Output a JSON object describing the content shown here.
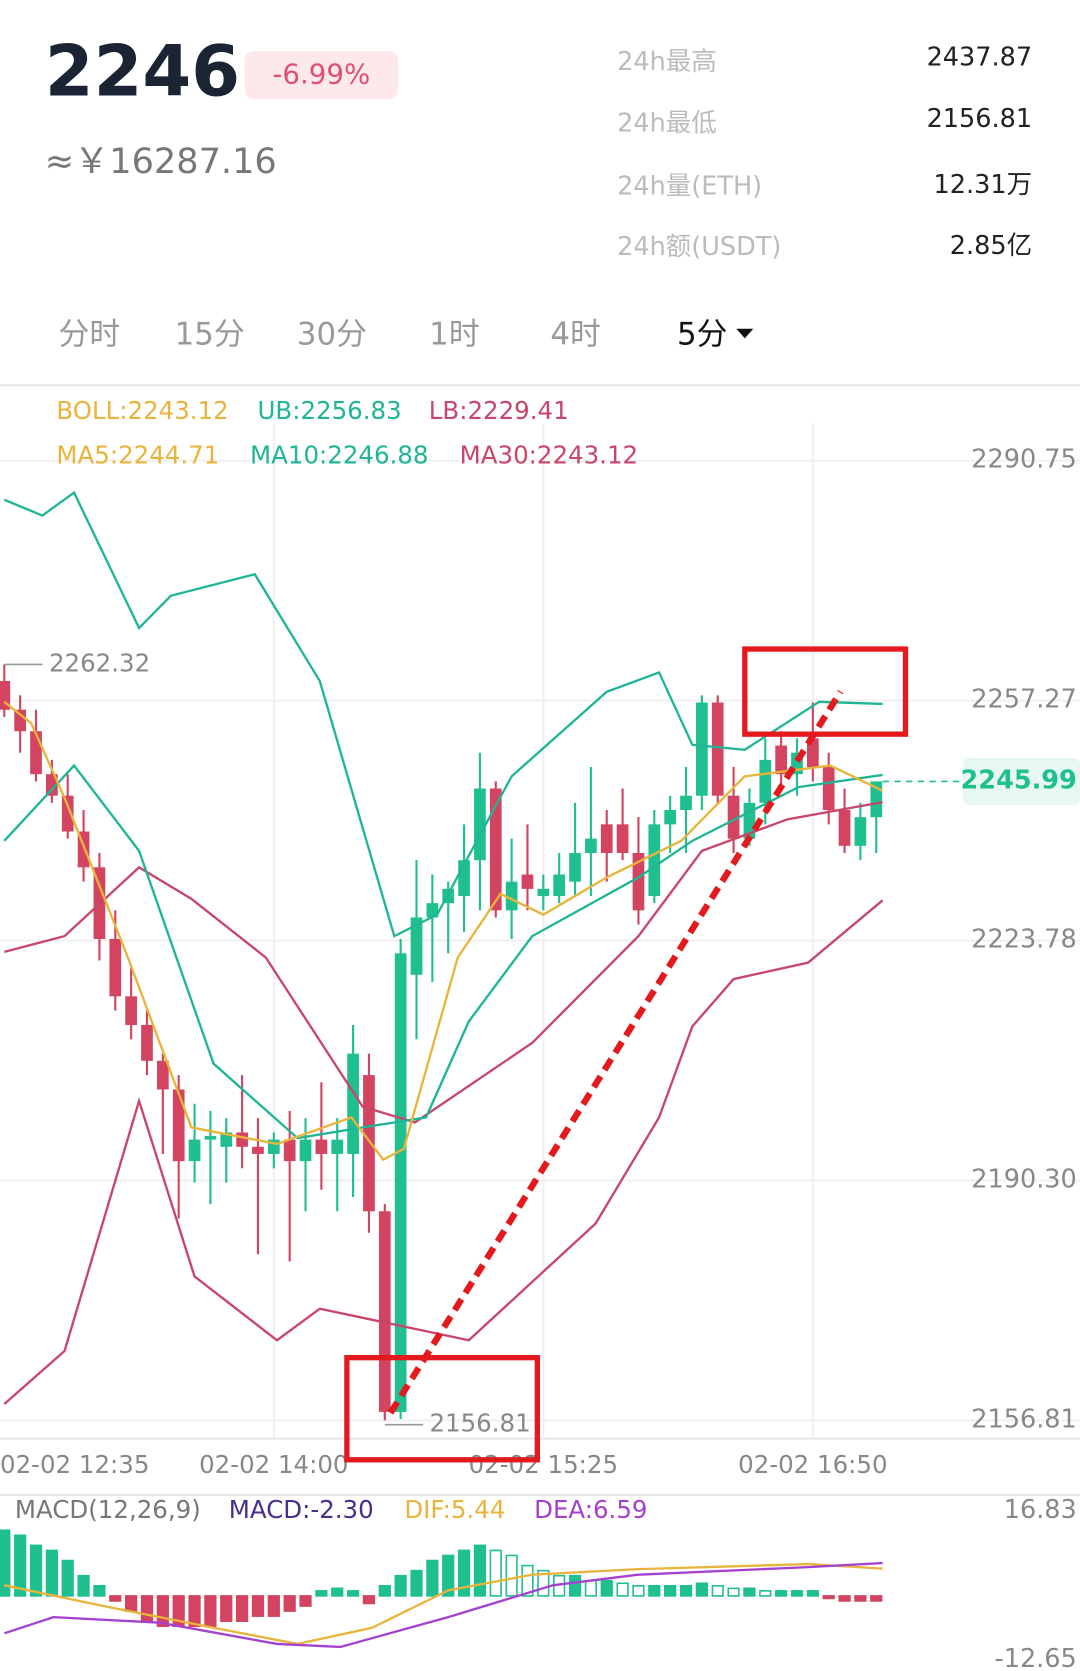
{
  "header": {
    "price": "2246",
    "change": "-6.99%",
    "cny": "≈￥16287.16",
    "stats": [
      {
        "label": "24h最高",
        "value": "2437.87"
      },
      {
        "label": "24h最低",
        "value": "2156.81"
      },
      {
        "label": "24h量(ETH)",
        "value": "12.31万"
      },
      {
        "label": "24h额(USDT)",
        "value": "2.85亿"
      }
    ]
  },
  "tabs": [
    "分时",
    "15分",
    "30分",
    "1时",
    "4时",
    "5分"
  ],
  "chart_data": [
    {
      "type": "candlestick",
      "indicators": [
        {
          "text": "BOLL:2243.12",
          "color": "#e9b43c"
        },
        {
          "text": "UB:2256.83",
          "color": "#1fb596"
        },
        {
          "text": "LB:2229.41",
          "color": "#c8466a"
        },
        {
          "text": "MA5:2244.71",
          "color": "#e9b43c"
        },
        {
          "text": "MA10:2246.88",
          "color": "#1fb596"
        },
        {
          "text": "MA30:2243.12",
          "color": "#c8466a"
        }
      ],
      "categories": [
        "02-02 12:35",
        null,
        null,
        null,
        null,
        null,
        null,
        null,
        null,
        null,
        null,
        null,
        null,
        null,
        null,
        null,
        null,
        "02-02 14:00",
        null,
        null,
        null,
        null,
        null,
        null,
        null,
        null,
        null,
        null,
        null,
        null,
        null,
        null,
        null,
        null,
        "02-02 15:25",
        null,
        null,
        null,
        null,
        null,
        null,
        null,
        null,
        null,
        null,
        null,
        null,
        null,
        null,
        null,
        null,
        "02-02 16:50",
        null,
        null,
        null,
        null
      ],
      "xlim": [
        -0.27,
        67.85
      ],
      "ylim": [
        2154.29,
        2295.95
      ],
      "yticks": [
        2290.75,
        2257.27,
        2223.78,
        {
          "value": 2190.3,
          "label": "2190.30"
        },
        2156.81
      ],
      "up_color": "#1fbf8f",
      "down_color": "#d2445f",
      "candles": [
        {
          "open": 2260,
          "high": 2262.32,
          "low": 2255,
          "close": 2256
        },
        {
          "open": 2256,
          "high": 2258,
          "low": 2250,
          "close": 2253
        },
        {
          "open": 2253,
          "high": 2256,
          "low": 2246,
          "close": 2247
        },
        {
          "open": 2247,
          "high": 2249,
          "low": 2243,
          "close": 2244
        },
        {
          "open": 2244,
          "high": 2247,
          "low": 2238,
          "close": 2239
        },
        {
          "open": 2239,
          "high": 2242,
          "low": 2232,
          "close": 2234
        },
        {
          "open": 2234,
          "high": 2236,
          "low": 2221,
          "close": 2224
        },
        {
          "open": 2224,
          "high": 2228,
          "low": 2214,
          "close": 2216
        },
        {
          "open": 2216,
          "high": 2220,
          "low": 2210,
          "close": 2212
        },
        {
          "open": 2212,
          "high": 2214,
          "low": 2205,
          "close": 2207
        },
        {
          "open": 2207,
          "high": 2208,
          "low": 2194,
          "close": 2203
        },
        {
          "open": 2203,
          "high": 2205,
          "low": 2185,
          "close": 2193
        },
        {
          "open": 2193,
          "high": 2201,
          "low": 2190,
          "close": 2196
        },
        {
          "open": 2196,
          "high": 2200,
          "low": 2187,
          "close": 2196.5
        },
        {
          "open": 2195,
          "high": 2199,
          "low": 2190,
          "close": 2197
        },
        {
          "open": 2197,
          "high": 2205,
          "low": 2192,
          "close": 2195
        },
        {
          "open": 2195,
          "high": 2199,
          "low": 2180,
          "close": 2194
        },
        {
          "open": 2194,
          "high": 2197,
          "low": 2192,
          "close": 2196
        },
        {
          "open": 2196,
          "high": 2200,
          "low": 2179,
          "close": 2193
        },
        {
          "open": 2193,
          "high": 2199,
          "low": 2186,
          "close": 2196
        },
        {
          "open": 2196,
          "high": 2204,
          "low": 2189,
          "close": 2194
        },
        {
          "open": 2194,
          "high": 2199,
          "low": 2186,
          "close": 2196
        },
        {
          "open": 2194,
          "high": 2212,
          "low": 2188,
          "close": 2208
        },
        {
          "open": 2205,
          "high": 2208,
          "low": 2183,
          "close": 2186
        },
        {
          "open": 2186,
          "high": 2187,
          "low": 2156.81,
          "close": 2158
        },
        {
          "open": 2158,
          "high": 2224,
          "low": 2157,
          "close": 2222
        },
        {
          "open": 2219,
          "high": 2235,
          "low": 2210,
          "close": 2227
        },
        {
          "open": 2227,
          "high": 2233,
          "low": 2218,
          "close": 2229
        },
        {
          "open": 2229,
          "high": 2232,
          "low": 2222,
          "close": 2231
        },
        {
          "open": 2230,
          "high": 2240,
          "low": 2225,
          "close": 2235
        },
        {
          "open": 2235,
          "high": 2250,
          "low": 2228,
          "close": 2245
        },
        {
          "open": 2245,
          "high": 2246,
          "low": 2227,
          "close": 2228
        },
        {
          "open": 2228,
          "high": 2238,
          "low": 2224,
          "close": 2232
        },
        {
          "open": 2233,
          "high": 2240,
          "low": 2228,
          "close": 2231
        },
        {
          "open": 2230,
          "high": 2233,
          "low": 2228,
          "close": 2231
        },
        {
          "open": 2230,
          "high": 2236,
          "low": 2229,
          "close": 2233
        },
        {
          "open": 2232,
          "high": 2243,
          "low": 2230,
          "close": 2236
        },
        {
          "open": 2236,
          "high": 2248,
          "low": 2230,
          "close": 2238
        },
        {
          "open": 2240,
          "high": 2242,
          "low": 2232,
          "close": 2236
        },
        {
          "open": 2240,
          "high": 2245,
          "low": 2235,
          "close": 2236
        },
        {
          "open": 2236,
          "high": 2241,
          "low": 2226,
          "close": 2228
        },
        {
          "open": 2230,
          "high": 2242,
          "low": 2229,
          "close": 2240
        },
        {
          "open": 2240,
          "high": 2244,
          "low": 2236,
          "close": 2242
        },
        {
          "open": 2242,
          "high": 2248,
          "low": 2236,
          "close": 2244
        },
        {
          "open": 2244,
          "high": 2258,
          "low": 2242,
          "close": 2257
        },
        {
          "open": 2257,
          "high": 2258,
          "low": 2243,
          "close": 2244
        },
        {
          "open": 2244,
          "high": 2248,
          "low": 2236,
          "close": 2238
        },
        {
          "open": 2238,
          "high": 2245,
          "low": 2237,
          "close": 2243
        },
        {
          "open": 2243,
          "high": 2252,
          "low": 2240,
          "close": 2249
        },
        {
          "open": 2251,
          "high": 2253,
          "low": 2245,
          "close": 2247
        },
        {
          "open": 2247,
          "high": 2252,
          "low": 2244,
          "close": 2250
        },
        {
          "open": 2252,
          "high": 2257,
          "low": 2246,
          "close": 2248
        },
        {
          "open": 2248,
          "high": 2250,
          "low": 2240,
          "close": 2242
        },
        {
          "open": 2242,
          "high": 2245,
          "low": 2236,
          "close": 2237
        },
        {
          "open": 2237,
          "high": 2243,
          "low": 2235,
          "close": 2241
        },
        {
          "open": 2241,
          "high": 2245,
          "low": 2236,
          "close": 2245.99
        }
      ],
      "series": [
        {
          "color": "#1fb596",
          "x": [
            0,
            2.4,
            4.4,
            8.5,
            10.5,
            15.8,
            19.9,
            24.6,
            27.3,
            32,
            38,
            41.3,
            43.4,
            46.7,
            51.4,
            55.4
          ],
          "values": [
            2285.3,
            2283.1,
            2286.3,
            2267.4,
            2271.9,
            2274.9,
            2260.0,
            2224.4,
            2227.4,
            2246.7,
            2258.5,
            2261.2,
            2251.1,
            2250.4,
            2257.1,
            2256.8
          ]
        },
        {
          "color": "#c8466a",
          "x": [
            0,
            3.8,
            8.5,
            11.8,
            16.5,
            22.6,
            25.9,
            33.3,
            40,
            44,
            49.4,
            55.4
          ],
          "values": [
            2222.2,
            2224.4,
            2234.0,
            2229.6,
            2221.4,
            2200.6,
            2198.4,
            2209.5,
            2224.4,
            2236.3,
            2240.7,
            2243.1
          ]
        },
        {
          "color": "#c8466a",
          "x": [
            0,
            3.8,
            8.5,
            12,
            17.2,
            19.9,
            29.3,
            37.3,
            41.3,
            43.4,
            46,
            50.7,
            55.4
          ],
          "values": [
            2159.1,
            2166.5,
            2201.4,
            2176.9,
            2168.0,
            2172.4,
            2168.0,
            2184.3,
            2199.1,
            2211.8,
            2218.4,
            2220.7,
            2229.4
          ]
        },
        {
          "color": "#1fb596",
          "x": [
            0,
            4.4,
            8.5,
            13.2,
            18.5,
            22.6,
            26.6,
            29.3,
            33.3,
            40,
            43.4,
            50.1,
            55.4
          ],
          "values": [
            2237.7,
            2248.2,
            2236.3,
            2206.6,
            2196.2,
            2197.7,
            2199.1,
            2212.5,
            2224.4,
            2232.6,
            2237.7,
            2245.2,
            2246.9
          ]
        },
        {
          "color": "#e9b43c",
          "x": [
            0,
            1.7,
            3.8,
            7.8,
            11.8,
            17.2,
            21.9,
            23.9,
            25.2,
            28.6,
            31.3,
            34,
            38,
            42.7,
            46.7,
            52.1,
            55.4
          ],
          "values": [
            2257.1,
            2254.1,
            2243.7,
            2221.4,
            2197.7,
            2195.4,
            2199.1,
            2193.2,
            2194.7,
            2221.4,
            2230.3,
            2227.4,
            2232.6,
            2237.7,
            2246.7,
            2248.2,
            2244.7
          ]
        }
      ]
    },
    {
      "type": "bar",
      "indicators": [
        {
          "text": "MACD(12,26,9)",
          "color": "#777777"
        },
        {
          "text": "MACD:-2.30",
          "color": "#4a2d8c"
        },
        {
          "text": "DIF:5.44",
          "color": "#e9b43c"
        },
        {
          "text": "DEA:6.59",
          "color": "#a541cf"
        }
      ],
      "xlim": [
        -0.27,
        67.85
      ],
      "ylim": [
        -12.65,
        16.83
      ],
      "yticks": [
        16.83,
        -12.65
      ],
      "up_color": "#1fbf8f",
      "down_color": "#d2445f",
      "values": [
        13,
        12,
        10,
        9,
        7,
        4,
        2,
        -1,
        -3,
        -5,
        -6,
        -6,
        -6,
        -6,
        -5,
        -5,
        -4,
        -4,
        -3,
        -2,
        1,
        1.5,
        1,
        -1.5,
        2,
        4,
        5,
        7,
        8,
        9,
        10,
        9,
        8,
        6,
        5,
        4,
        4,
        3,
        3,
        2.5,
        2,
        2,
        2,
        2,
        2.5,
        2,
        1.5,
        1.5,
        1,
        1,
        1,
        1,
        -0.5,
        -1,
        -1,
        -1
      ],
      "series": [
        {
          "color": "#e9b43c",
          "x": [
            0,
            6.4,
            13.2,
            18.5,
            23.2,
            28,
            33.3,
            40,
            50.7,
            55.4
          ],
          "values": [
            2.1,
            -2.1,
            -6.3,
            -9.5,
            -6.3,
            1.1,
            4.2,
            5.3,
            6.3,
            5.4
          ]
        },
        {
          "color": "#a541cf",
          "x": [
            0,
            3.1,
            9.8,
            17.2,
            21.2,
            28,
            34.6,
            40,
            50.7,
            55.4
          ],
          "values": [
            -7.4,
            -4.2,
            -5.3,
            -9.5,
            -10.1,
            -4.2,
            2.1,
            4.2,
            5.7,
            6.5
          ]
        }
      ]
    }
  ]
}
